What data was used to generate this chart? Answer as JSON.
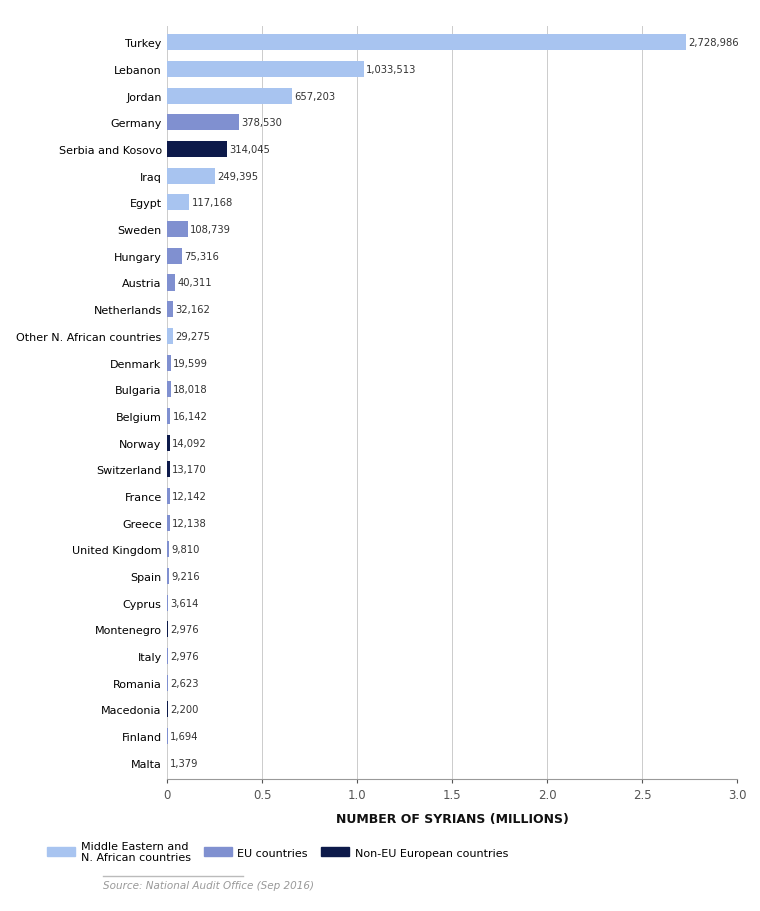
{
  "countries": [
    "Turkey",
    "Lebanon",
    "Jordan",
    "Germany",
    "Serbia and Kosovo",
    "Iraq",
    "Egypt",
    "Sweden",
    "Hungary",
    "Austria",
    "Netherlands",
    "Other N. African countries",
    "Denmark",
    "Bulgaria",
    "Belgium",
    "Norway",
    "Switzerland",
    "France",
    "Greece",
    "United Kingdom",
    "Spain",
    "Cyprus",
    "Montenegro",
    "Italy",
    "Romania",
    "Macedonia",
    "Finland",
    "Malta"
  ],
  "values": [
    2728986,
    1033513,
    657203,
    378530,
    314045,
    249395,
    117168,
    108739,
    75316,
    40311,
    32162,
    29275,
    19599,
    18018,
    16142,
    14092,
    13170,
    12142,
    12138,
    9810,
    9216,
    3614,
    2976,
    2976,
    2623,
    2200,
    1694,
    1379
  ],
  "categories": {
    "Germany": "EU",
    "Sweden": "EU",
    "Hungary": "EU",
    "Austria": "EU",
    "Netherlands": "EU",
    "Denmark": "EU",
    "Bulgaria": "EU",
    "Belgium": "EU",
    "France": "EU",
    "Greece": "EU",
    "United Kingdom": "EU",
    "Spain": "EU",
    "Cyprus": "EU",
    "Italy": "EU",
    "Romania": "EU",
    "Finland": "EU",
    "Malta": "EU"
  },
  "colors": {
    "ME_NA": "#a8c4f0",
    "EU": "#8090d0",
    "NonEU": "#0d1a4a"
  },
  "legend_labels": {
    "ME_NA": "Middle Eastern and\nN. African countries",
    "EU": "EU countries",
    "NonEU": "Non-EU European countries"
  },
  "xlabel": "NUMBER OF SYRIANS (MILLIONS)",
  "xlim": [
    0,
    3000000
  ],
  "xticks": [
    0,
    500000,
    1000000,
    1500000,
    2000000,
    2500000,
    3000000
  ],
  "xtick_labels": [
    "0",
    "0.5",
    "1.0",
    "1.5",
    "2.0",
    "2.5",
    "3.0"
  ],
  "source_text": "Source: National Audit Office (Sep 2016)",
  "bg_color": "#ffffff",
  "bar_height": 0.6,
  "grid_color": "#cccccc"
}
